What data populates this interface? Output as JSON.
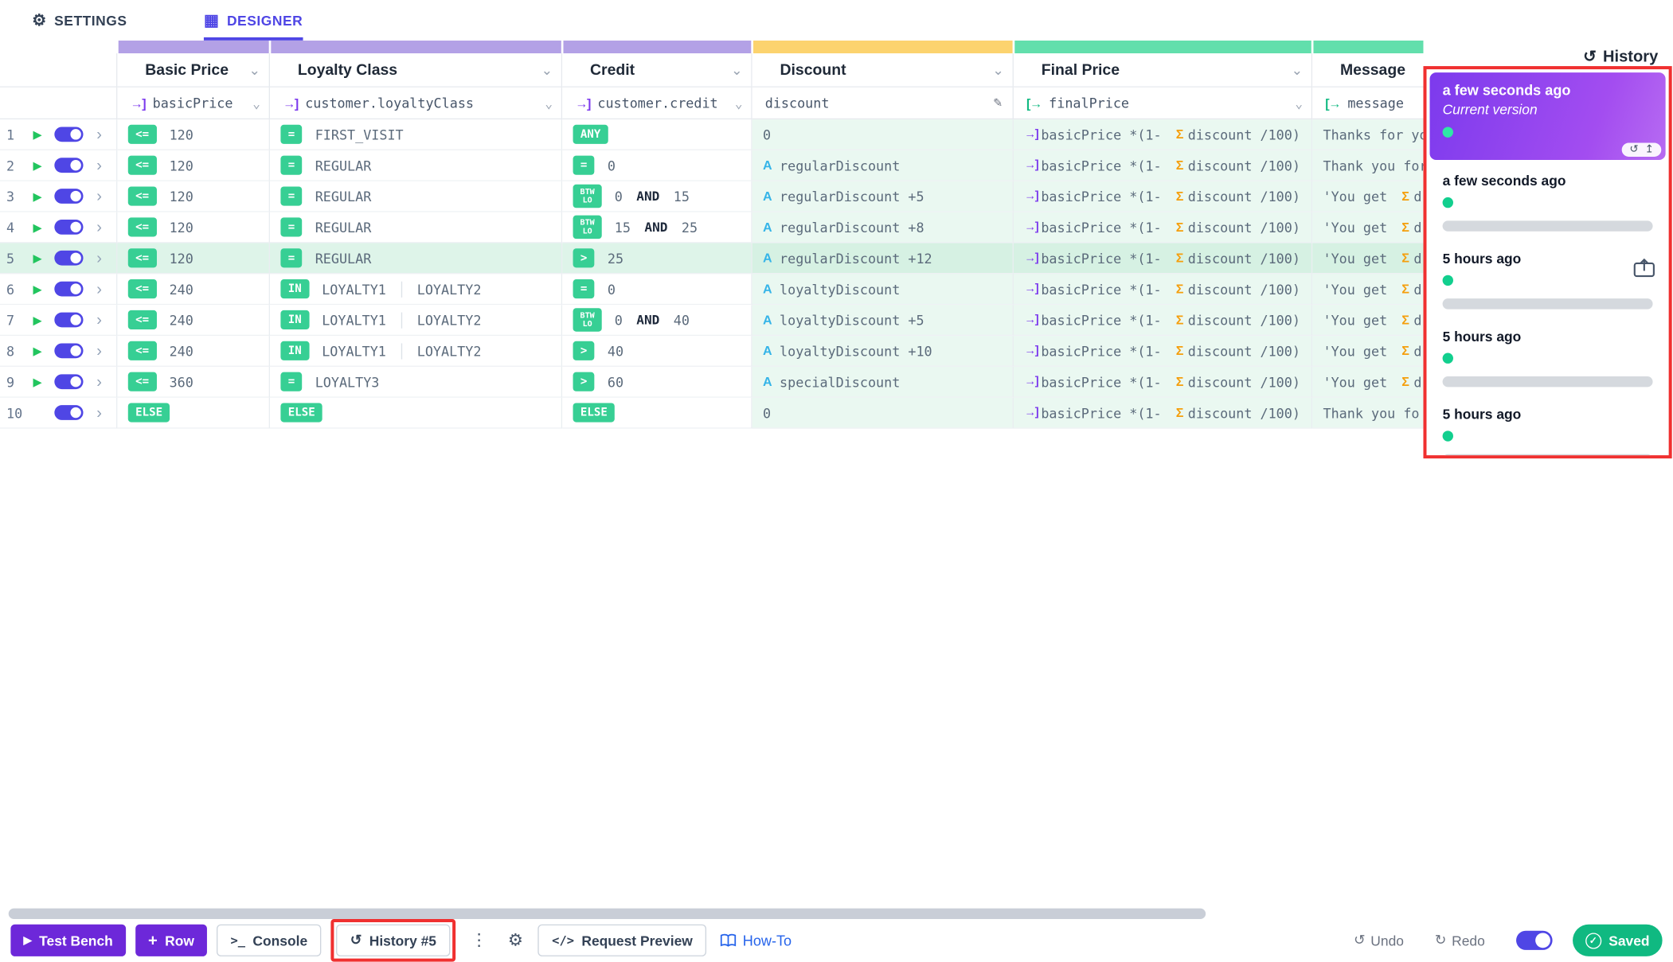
{
  "colors": {
    "accent_violet": "#6d28d9",
    "toggle_violet": "#4f46e5",
    "badge_green": "#37cf94",
    "saved_green": "#10b981",
    "strip_purple": "#b3a1e6",
    "strip_yellow": "#fcd36e",
    "strip_green": "#62dfac",
    "annotation_red": "#f03030",
    "result_cell_bg": "#eaf8f1",
    "active_row_bg": "#def4e9",
    "sigma_orange": "#f59e0b",
    "variable_blue": "#35b4e8"
  },
  "icons": {
    "settings": "⚙",
    "designer": "▦",
    "history": "↺",
    "chevron_down": "⌄",
    "chevron_right": "›",
    "play": "▶",
    "input": "→]",
    "output": "[→",
    "pencil": "✎",
    "sigma": "Σ",
    "variable": "A",
    "console": ">_",
    "dots": "⋮",
    "gear": "⚙",
    "code": "</>",
    "undo": "↺",
    "redo": "↻",
    "check": "✓",
    "plus": "+",
    "tools_restore": "↺",
    "tools_up": "↥"
  },
  "tabs": {
    "settings": "SETTINGS",
    "designer": "DESIGNER"
  },
  "columns": [
    {
      "title": "Basic Price",
      "field": "basicPrice",
      "kind": "input"
    },
    {
      "title": "Loyalty Class",
      "field": "customer.loyaltyClass",
      "kind": "input"
    },
    {
      "title": "Credit",
      "field": "customer.credit",
      "kind": "input"
    },
    {
      "title": "Discount",
      "field": "discount",
      "kind": "editable"
    },
    {
      "title": "Final Price",
      "field": "finalPrice",
      "kind": "output"
    },
    {
      "title": "Message",
      "field": "message",
      "kind": "output"
    }
  ],
  "final_expr": {
    "var": "basicPrice",
    "mid": " *(1- ",
    "sum": "discount",
    "end": " /100)"
  },
  "rows": [
    {
      "num": "1",
      "play": true,
      "active": false,
      "basic": {
        "op": "<=",
        "value": "120"
      },
      "loyalty": {
        "op": "=",
        "values": [
          "FIRST_VISIT"
        ]
      },
      "credit": {
        "op": "ANY",
        "value": "",
        "and": "",
        "value2": ""
      },
      "discount": {
        "kind": "lit",
        "text": "0",
        "name": "",
        "suffix": ""
      },
      "message": {
        "pre": "Thanks for yo",
        "sigma": false,
        "post": ""
      }
    },
    {
      "num": "2",
      "play": true,
      "active": false,
      "basic": {
        "op": "<=",
        "value": "120"
      },
      "loyalty": {
        "op": "=",
        "values": [
          "REGULAR"
        ]
      },
      "credit": {
        "op": "=",
        "value": "0",
        "and": "",
        "value2": ""
      },
      "discount": {
        "kind": "var",
        "text": "",
        "name": "regularDiscount",
        "suffix": ""
      },
      "message": {
        "pre": "Thank you for",
        "sigma": false,
        "post": ""
      }
    },
    {
      "num": "3",
      "play": true,
      "active": false,
      "basic": {
        "op": "<=",
        "value": "120"
      },
      "loyalty": {
        "op": "=",
        "values": [
          "REGULAR"
        ]
      },
      "credit": {
        "op": "BTW LO",
        "value": "0",
        "and": "AND",
        "value2": "15"
      },
      "discount": {
        "kind": "var",
        "text": "",
        "name": "regularDiscount",
        "suffix": "+5"
      },
      "message": {
        "pre": "'You get ",
        "sigma": true,
        "post": "d"
      }
    },
    {
      "num": "4",
      "play": true,
      "active": false,
      "basic": {
        "op": "<=",
        "value": "120"
      },
      "loyalty": {
        "op": "=",
        "values": [
          "REGULAR"
        ]
      },
      "credit": {
        "op": "BTW LO",
        "value": "15",
        "and": "AND",
        "value2": "25"
      },
      "discount": {
        "kind": "var",
        "text": "",
        "name": "regularDiscount",
        "suffix": "+8"
      },
      "message": {
        "pre": "'You get ",
        "sigma": true,
        "post": "d"
      }
    },
    {
      "num": "5",
      "play": true,
      "active": true,
      "basic": {
        "op": "<=",
        "value": "120"
      },
      "loyalty": {
        "op": "=",
        "values": [
          "REGULAR"
        ]
      },
      "credit": {
        "op": ">",
        "value": "25",
        "and": "",
        "value2": ""
      },
      "discount": {
        "kind": "var",
        "text": "",
        "name": "regularDiscount",
        "suffix": "+12"
      },
      "message": {
        "pre": "'You get ",
        "sigma": true,
        "post": "d"
      }
    },
    {
      "num": "6",
      "play": true,
      "active": false,
      "basic": {
        "op": "<=",
        "value": "240"
      },
      "loyalty": {
        "op": "IN",
        "values": [
          "LOYALTY1",
          "LOYALTY2"
        ]
      },
      "credit": {
        "op": "=",
        "value": "0",
        "and": "",
        "value2": ""
      },
      "discount": {
        "kind": "var",
        "text": "",
        "name": "loyaltyDiscount",
        "suffix": ""
      },
      "message": {
        "pre": "'You get ",
        "sigma": true,
        "post": "d"
      }
    },
    {
      "num": "7",
      "play": true,
      "active": false,
      "basic": {
        "op": "<=",
        "value": "240"
      },
      "loyalty": {
        "op": "IN",
        "values": [
          "LOYALTY1",
          "LOYALTY2"
        ]
      },
      "credit": {
        "op": "BTW LO",
        "value": "0",
        "and": "AND",
        "value2": "40"
      },
      "discount": {
        "kind": "var",
        "text": "",
        "name": "loyaltyDiscount",
        "suffix": "+5"
      },
      "message": {
        "pre": "'You get ",
        "sigma": true,
        "post": "d"
      }
    },
    {
      "num": "8",
      "play": true,
      "active": false,
      "basic": {
        "op": "<=",
        "value": "240"
      },
      "loyalty": {
        "op": "IN",
        "values": [
          "LOYALTY1",
          "LOYALTY2"
        ]
      },
      "credit": {
        "op": ">",
        "value": "40",
        "and": "",
        "value2": ""
      },
      "discount": {
        "kind": "var",
        "text": "",
        "name": "loyaltyDiscount",
        "suffix": "+10"
      },
      "message": {
        "pre": "'You get ",
        "sigma": true,
        "post": "d"
      }
    },
    {
      "num": "9",
      "play": true,
      "active": false,
      "basic": {
        "op": "<=",
        "value": "360"
      },
      "loyalty": {
        "op": "=",
        "values": [
          "LOYALTY3"
        ]
      },
      "credit": {
        "op": ">",
        "value": "60",
        "and": "",
        "value2": ""
      },
      "discount": {
        "kind": "var",
        "text": "",
        "name": "specialDiscount",
        "suffix": ""
      },
      "message": {
        "pre": "'You get ",
        "sigma": true,
        "post": "d"
      }
    },
    {
      "num": "10",
      "play": false,
      "active": false,
      "basic": {
        "op": "ELSE",
        "value": ""
      },
      "loyalty": {
        "op": "ELSE",
        "values": []
      },
      "credit": {
        "op": "ELSE",
        "value": "",
        "and": "",
        "value2": ""
      },
      "discount": {
        "kind": "lit",
        "text": "0",
        "name": "",
        "suffix": ""
      },
      "message": {
        "pre": "Thank you fo",
        "sigma": false,
        "post": ""
      }
    }
  ],
  "history": {
    "title": "History",
    "entries": [
      {
        "time": "a few seconds ago",
        "subtitle": "Current version",
        "current": true
      },
      {
        "time": "a few seconds ago",
        "current": false
      },
      {
        "time": "5 hours ago",
        "current": false
      },
      {
        "time": "5 hours ago",
        "current": false
      },
      {
        "time": "5 hours ago",
        "current": false
      }
    ]
  },
  "toolbar": {
    "test_bench": "Test Bench",
    "row": "Row",
    "console": "Console",
    "history": "History #5",
    "request_preview": "Request Preview",
    "how_to": "How-To",
    "undo": "Undo",
    "redo": "Redo",
    "saved": "Saved"
  }
}
